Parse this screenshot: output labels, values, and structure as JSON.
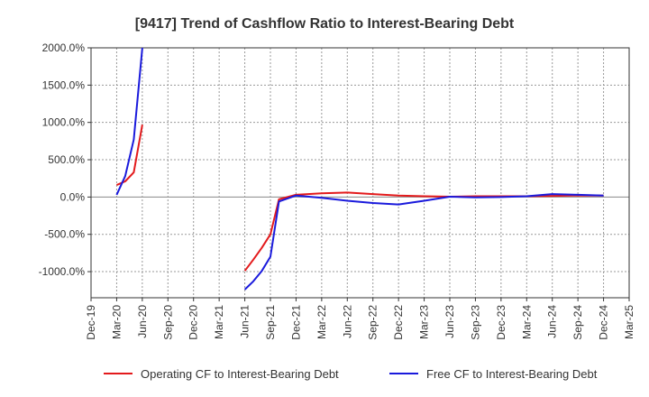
{
  "chart_data": {
    "type": "line",
    "title": "[9417]  Trend of Cashflow Ratio to Interest-Bearing Debt",
    "xlabel": "",
    "ylabel": "",
    "x": [
      "Dec-19",
      "Mar-20",
      "Jun-20",
      "Sep-20",
      "Dec-20",
      "Mar-21",
      "Jun-21",
      "Sep-21",
      "Dec-21",
      "Mar-22",
      "Jun-22",
      "Sep-22",
      "Dec-22",
      "Mar-23",
      "Jun-23",
      "Sep-23",
      "Dec-23",
      "Mar-24",
      "Jun-24",
      "Sep-24",
      "Dec-24",
      "Mar-25"
    ],
    "yticks": [
      2000,
      1500,
      1000,
      500,
      0,
      -500,
      -1000
    ],
    "ytick_labels": [
      "2000.0%",
      "1500.0%",
      "1000.0%",
      "500.0%",
      "0.0%",
      "-500.0%",
      "-1000.0%"
    ],
    "ylim": [
      -1350,
      2000
    ],
    "grid": true,
    "legend_position": "bottom",
    "series": [
      {
        "name": "Operating CF to Interest-Bearing Debt",
        "color": "#e31a1c",
        "segments": [
          [
            [
              "Mar-20",
              160
            ],
            [
              "Apr-20",
              210
            ],
            [
              "May-20",
              330
            ],
            [
              "Jun-20",
              970
            ]
          ],
          [
            [
              "Jun-21",
              -990
            ],
            [
              "Jul-21",
              -840
            ],
            [
              "Aug-21",
              -680
            ],
            [
              "Sep-21",
              -500
            ],
            [
              "Oct-21",
              -30
            ],
            [
              "Dec-21",
              30
            ],
            [
              "Mar-22",
              50
            ],
            [
              "Jun-22",
              60
            ],
            [
              "Sep-22",
              40
            ],
            [
              "Dec-22",
              20
            ],
            [
              "Mar-23",
              10
            ],
            [
              "Jun-23",
              5
            ],
            [
              "Sep-23",
              10
            ],
            [
              "Dec-23",
              10
            ],
            [
              "Mar-24",
              10
            ],
            [
              "Jun-24",
              15
            ],
            [
              "Sep-24",
              20
            ],
            [
              "Dec-24",
              20
            ]
          ]
        ]
      },
      {
        "name": "Free CF to Interest-Bearing Debt",
        "color": "#1a1adc",
        "segments": [
          [
            [
              "Mar-20",
              30
            ],
            [
              "Apr-20",
              280
            ],
            [
              "May-20",
              770
            ],
            [
              "Jun-20",
              2000
            ]
          ],
          [
            [
              "Jun-21",
              -1240
            ],
            [
              "Jul-21",
              -1130
            ],
            [
              "Aug-21",
              -990
            ],
            [
              "Sep-21",
              -800
            ],
            [
              "Oct-21",
              -60
            ],
            [
              "Dec-21",
              20
            ],
            [
              "Mar-22",
              -10
            ],
            [
              "Jun-22",
              -50
            ],
            [
              "Sep-22",
              -80
            ],
            [
              "Dec-22",
              -100
            ],
            [
              "Mar-23",
              -50
            ],
            [
              "Jun-23",
              5
            ],
            [
              "Sep-23",
              -5
            ],
            [
              "Dec-23",
              0
            ],
            [
              "Mar-24",
              10
            ],
            [
              "Jun-24",
              40
            ],
            [
              "Sep-24",
              30
            ],
            [
              "Dec-24",
              20
            ]
          ]
        ]
      }
    ]
  }
}
